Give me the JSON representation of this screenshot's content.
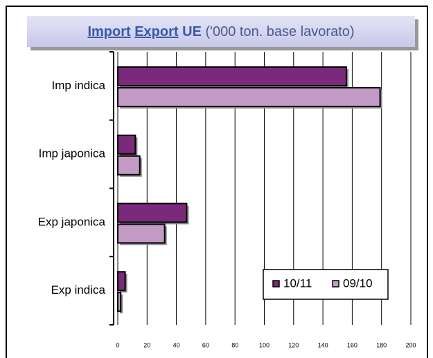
{
  "chart_data": {
    "type": "barh",
    "title_parts": [
      "Import",
      "Export",
      "UE",
      "('000 ton. base lavorato)"
    ],
    "categories": [
      "Imp indica",
      "Imp japonica",
      "Exp japonica",
      "Exp indica"
    ],
    "series": [
      {
        "name": "10/11",
        "color": "#7b2a7b",
        "values": [
          156,
          12,
          47,
          5
        ]
      },
      {
        "name": "09/10",
        "color": "#c49ac6",
        "values": [
          179,
          15,
          32,
          2
        ]
      }
    ],
    "xlim": [
      0,
      200
    ],
    "xticks": [
      0,
      20,
      40,
      60,
      80,
      100,
      120,
      140,
      160,
      180,
      200
    ],
    "grid": true,
    "legend": "lower right"
  }
}
